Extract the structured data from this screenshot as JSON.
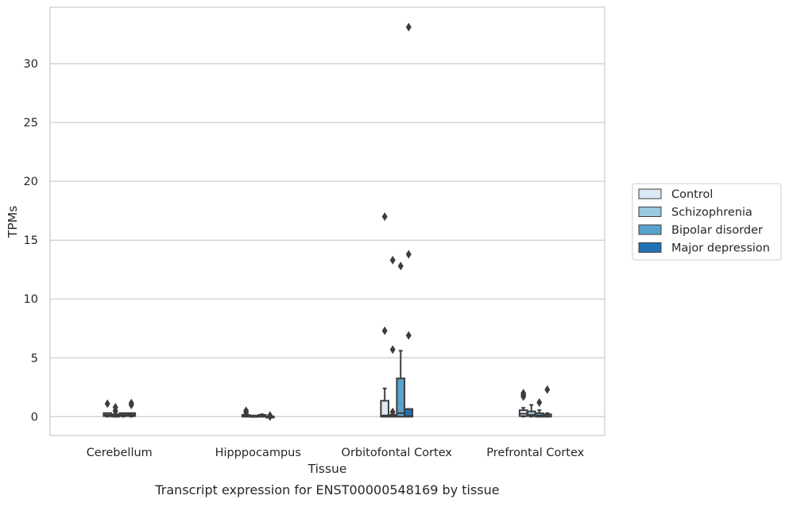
{
  "chart_data": {
    "type": "box",
    "caption": "Transcript expression for ENST00000548169 by tissue",
    "xlabel": "Tissue",
    "ylabel": "TPMs",
    "ylim": [
      -1.6,
      34.8
    ],
    "yticks": [
      0,
      5,
      10,
      15,
      20,
      25,
      30
    ],
    "grid": "horizontal",
    "legend_position": "right",
    "categories": [
      "Cerebellum",
      "Hipppocampus",
      "Orbitofontal Cortex",
      "Prefrontal Cortex"
    ],
    "series": [
      {
        "name": "Control",
        "color": "#dbe9f6",
        "boxes": [
          {
            "q1": 0.05,
            "median": 0.15,
            "q3": 0.3,
            "whislo": 0.0,
            "whishi": 0.3,
            "fliers": [
              1.1
            ]
          },
          {
            "q1": 0.0,
            "median": 0.05,
            "q3": 0.15,
            "whislo": 0.0,
            "whishi": 0.15,
            "fliers": [
              0.35,
              0.5
            ]
          },
          {
            "q1": 0.0,
            "median": 0.1,
            "q3": 1.35,
            "whislo": 0.0,
            "whishi": 2.4,
            "fliers": [
              7.3,
              17.0
            ]
          },
          {
            "q1": 0.05,
            "median": 0.25,
            "q3": 0.55,
            "whislo": 0.0,
            "whishi": 0.75,
            "fliers": [
              1.7,
              1.85,
              2.0
            ]
          }
        ]
      },
      {
        "name": "Schizophrenia",
        "color": "#9ac8e0",
        "boxes": [
          {
            "q1": 0.0,
            "median": 0.1,
            "q3": 0.2,
            "whislo": 0.0,
            "whishi": 0.35,
            "fliers": [
              0.5,
              0.8
            ]
          },
          {
            "q1": 0.0,
            "median": 0.02,
            "q3": 0.08,
            "whislo": 0.0,
            "whishi": 0.1,
            "fliers": []
          },
          {
            "q1": 0.0,
            "median": 0.05,
            "q3": 0.15,
            "whislo": 0.0,
            "whishi": 0.2,
            "fliers": [
              0.4,
              5.7,
              13.3
            ]
          },
          {
            "q1": 0.05,
            "median": 0.15,
            "q3": 0.45,
            "whislo": 0.0,
            "whishi": 1.0,
            "fliers": []
          }
        ]
      },
      {
        "name": "Bipolar disorder",
        "color": "#5ba3cf",
        "boxes": [
          {
            "q1": 0.05,
            "median": 0.15,
            "q3": 0.3,
            "whislo": 0.0,
            "whishi": 0.3,
            "fliers": []
          },
          {
            "q1": 0.0,
            "median": 0.05,
            "q3": 0.15,
            "whislo": 0.0,
            "whishi": 0.2,
            "fliers": []
          },
          {
            "q1": 0.0,
            "median": 0.3,
            "q3": 3.25,
            "whislo": 0.0,
            "whishi": 5.6,
            "fliers": [
              12.8
            ]
          },
          {
            "q1": 0.0,
            "median": 0.1,
            "q3": 0.3,
            "whislo": 0.0,
            "whishi": 0.55,
            "fliers": [
              1.2
            ]
          }
        ]
      },
      {
        "name": "Major depression",
        "color": "#2272b5",
        "boxes": [
          {
            "q1": 0.05,
            "median": 0.15,
            "q3": 0.3,
            "whislo": 0.0,
            "whishi": 0.3,
            "fliers": [
              1.0,
              1.15
            ]
          },
          {
            "q1": 0.0,
            "median": 0.0,
            "q3": 0.02,
            "whislo": 0.0,
            "whishi": 0.02,
            "fliers": [
              0.0,
              0.1
            ]
          },
          {
            "q1": 0.0,
            "median": 0.05,
            "q3": 0.65,
            "whislo": 0.0,
            "whishi": 0.65,
            "fliers": [
              6.9,
              13.8,
              33.1
            ]
          },
          {
            "q1": 0.0,
            "median": 0.05,
            "q3": 0.2,
            "whislo": 0.0,
            "whishi": 0.3,
            "fliers": [
              2.3
            ]
          }
        ]
      }
    ]
  }
}
